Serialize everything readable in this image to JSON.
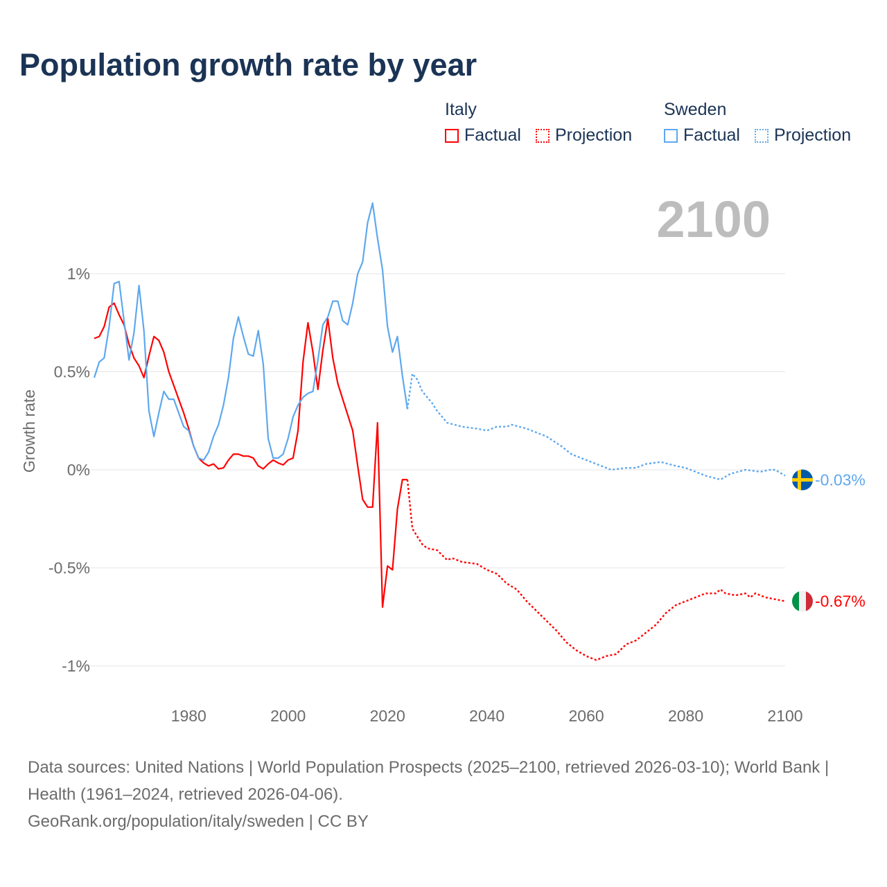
{
  "chart_data": {
    "type": "line",
    "title": "Population growth rate by year",
    "ylabel": "Growth rate",
    "xlabel": "",
    "xlim": [
      1961,
      2100
    ],
    "ylim": [
      -1.1,
      1.4
    ],
    "x_ticks": [
      "1980",
      "2000",
      "2020",
      "2040",
      "2060",
      "2080",
      "2100"
    ],
    "x_tick_values": [
      1980,
      2000,
      2020,
      2040,
      2060,
      2080,
      2100
    ],
    "y_ticks": [
      "1%",
      "0.5%",
      "0%",
      "-0.5%",
      "-1%"
    ],
    "y_tick_values": [
      1,
      0.5,
      0,
      -0.5,
      -1
    ],
    "grid": true,
    "legend_placement": "top-right",
    "current_year_label": "2100",
    "series": [
      {
        "name": "Italy",
        "color": "#ff0000",
        "end_label": "-0.67%",
        "factual": {
          "label": "Factual",
          "x": [
            1961,
            1962,
            1963,
            1964,
            1965,
            1966,
            1967,
            1968,
            1969,
            1970,
            1971,
            1972,
            1973,
            1974,
            1975,
            1976,
            1977,
            1978,
            1979,
            1980,
            1981,
            1982,
            1983,
            1984,
            1985,
            1986,
            1987,
            1988,
            1989,
            1990,
            1991,
            1992,
            1993,
            1994,
            1995,
            1996,
            1997,
            1998,
            1999,
            2000,
            2001,
            2002,
            2003,
            2004,
            2005,
            2006,
            2007,
            2008,
            2009,
            2010,
            2011,
            2012,
            2013,
            2014,
            2015,
            2016,
            2017,
            2018,
            2019,
            2020,
            2021,
            2022,
            2023,
            2024
          ],
          "y": [
            0.67,
            0.68,
            0.73,
            0.83,
            0.85,
            0.79,
            0.74,
            0.64,
            0.57,
            0.53,
            0.47,
            0.58,
            0.68,
            0.66,
            0.6,
            0.5,
            0.43,
            0.36,
            0.29,
            0.21,
            0.12,
            0.06,
            0.035,
            0.02,
            0.03,
            0.005,
            0.01,
            0.05,
            0.08,
            0.08,
            0.07,
            0.07,
            0.06,
            0.02,
            0.005,
            0.03,
            0.05,
            0.035,
            0.025,
            0.05,
            0.06,
            0.2,
            0.55,
            0.75,
            0.6,
            0.41,
            0.61,
            0.77,
            0.57,
            0.44,
            0.36,
            0.28,
            0.2,
            0.02,
            -0.15,
            -0.19,
            -0.19,
            0.24,
            -0.7,
            -0.49,
            -0.51,
            -0.2,
            -0.05,
            -0.05
          ]
        },
        "projection": {
          "label": "Projection",
          "x": [
            2024,
            2025,
            2026,
            2027,
            2028,
            2030,
            2032,
            2033,
            2035,
            2038,
            2040,
            2042,
            2044,
            2046,
            2048,
            2050,
            2052,
            2054,
            2056,
            2058,
            2060,
            2062,
            2064,
            2066,
            2068,
            2070,
            2072,
            2074,
            2076,
            2078,
            2080,
            2082,
            2084,
            2086,
            2087,
            2088,
            2090,
            2092,
            2093,
            2094,
            2096,
            2098,
            2100
          ],
          "y": [
            -0.05,
            -0.3,
            -0.34,
            -0.38,
            -0.4,
            -0.41,
            -0.46,
            -0.45,
            -0.47,
            -0.48,
            -0.51,
            -0.53,
            -0.58,
            -0.61,
            -0.67,
            -0.72,
            -0.77,
            -0.82,
            -0.88,
            -0.92,
            -0.95,
            -0.97,
            -0.95,
            -0.94,
            -0.89,
            -0.87,
            -0.83,
            -0.79,
            -0.73,
            -0.69,
            -0.67,
            -0.65,
            -0.63,
            -0.63,
            -0.61,
            -0.63,
            -0.64,
            -0.63,
            -0.65,
            -0.63,
            -0.65,
            -0.66,
            -0.67
          ]
        }
      },
      {
        "name": "Sweden",
        "color": "#5ea8ee",
        "end_label": "-0.03%",
        "factual": {
          "label": "Factual",
          "x": [
            1961,
            1962,
            1963,
            1964,
            1965,
            1966,
            1967,
            1968,
            1969,
            1970,
            1971,
            1972,
            1973,
            1974,
            1975,
            1976,
            1977,
            1978,
            1979,
            1980,
            1981,
            1982,
            1983,
            1984,
            1985,
            1986,
            1987,
            1988,
            1989,
            1990,
            1991,
            1992,
            1993,
            1994,
            1995,
            1996,
            1997,
            1998,
            1999,
            2000,
            2001,
            2002,
            2003,
            2004,
            2005,
            2006,
            2007,
            2008,
            2009,
            2010,
            2011,
            2012,
            2013,
            2014,
            2015,
            2016,
            2017,
            2018,
            2019,
            2020,
            2021,
            2022,
            2023,
            2024
          ],
          "y": [
            0.47,
            0.55,
            0.57,
            0.73,
            0.95,
            0.96,
            0.76,
            0.56,
            0.7,
            0.94,
            0.71,
            0.3,
            0.17,
            0.29,
            0.4,
            0.36,
            0.36,
            0.29,
            0.22,
            0.2,
            0.12,
            0.06,
            0.05,
            0.09,
            0.17,
            0.23,
            0.33,
            0.47,
            0.67,
            0.78,
            0.68,
            0.59,
            0.58,
            0.71,
            0.54,
            0.16,
            0.06,
            0.06,
            0.08,
            0.16,
            0.27,
            0.33,
            0.37,
            0.39,
            0.4,
            0.56,
            0.74,
            0.78,
            0.86,
            0.86,
            0.76,
            0.74,
            0.85,
            1.0,
            1.06,
            1.26,
            1.36,
            1.18,
            1.02,
            0.73,
            0.6,
            0.68,
            0.48,
            0.31
          ]
        },
        "projection": {
          "label": "Projection",
          "x": [
            2024,
            2025,
            2026,
            2027,
            2028,
            2029,
            2030,
            2031,
            2032,
            2035,
            2038,
            2040,
            2042,
            2044,
            2045,
            2048,
            2050,
            2052,
            2055,
            2057,
            2060,
            2063,
            2065,
            2068,
            2070,
            2072,
            2075,
            2078,
            2080,
            2082,
            2084,
            2087,
            2089,
            2092,
            2095,
            2097,
            2098,
            2100
          ],
          "y": [
            0.31,
            0.49,
            0.46,
            0.4,
            0.37,
            0.34,
            0.3,
            0.27,
            0.24,
            0.22,
            0.21,
            0.2,
            0.22,
            0.22,
            0.23,
            0.21,
            0.19,
            0.17,
            0.12,
            0.08,
            0.05,
            0.02,
            0.0,
            0.01,
            0.01,
            0.03,
            0.04,
            0.02,
            0.01,
            -0.01,
            -0.03,
            -0.05,
            -0.02,
            0.0,
            -0.01,
            0.0,
            0.0,
            -0.03
          ]
        }
      }
    ]
  },
  "legend": {
    "groups": [
      {
        "name": "Italy",
        "factual": "Factual",
        "projection": "Projection"
      },
      {
        "name": "Sweden",
        "factual": "Factual",
        "projection": "Projection"
      }
    ]
  },
  "footer": {
    "sources": "Data sources: United Nations | World Population Prospects (2025–2100, retrieved 2026-03-10); World Bank | Health (1961–2024, retrieved 2026-04-06).",
    "link": "GeoRank.org/population/italy/sweden | CC BY"
  }
}
